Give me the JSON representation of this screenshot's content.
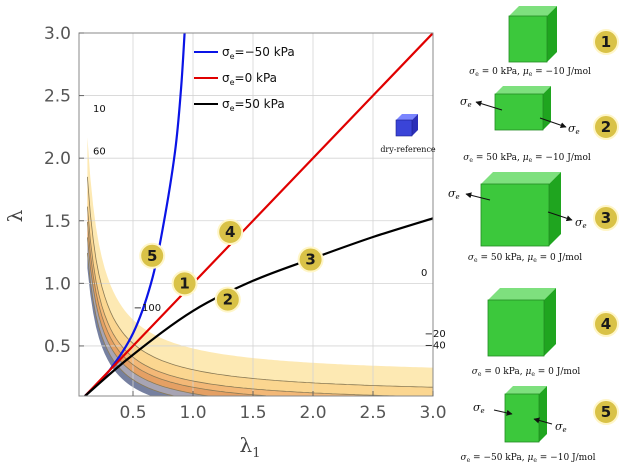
{
  "chart_data": {
    "type": "line",
    "xlabel": "λ",
    "xlabel_sub": "1",
    "ylabel": "λ",
    "xlim": [
      0.05,
      3.0
    ],
    "ylim": [
      0.1,
      3.0
    ],
    "xticks": [
      0.5,
      1.0,
      1.5,
      2.0,
      2.5,
      3.0
    ],
    "xtick_labels": [
      "0.5",
      "1.0",
      "1.5",
      "2.0",
      "2.5",
      "3.0"
    ],
    "yticks": [
      0.5,
      1.0,
      1.5,
      2.0,
      2.5,
      3.0
    ],
    "ytick_labels": [
      "0.5",
      "1.0",
      "1.5",
      "2.0",
      "2.5",
      "3.0"
    ],
    "grid": true,
    "legend_position": "top-right",
    "series": [
      {
        "name": "σe=−50 kPa",
        "color": "#0a14e6",
        "x": [
          0.1,
          0.3,
          0.5,
          0.65,
          0.75,
          0.85,
          0.9,
          0.93
        ],
        "y": [
          0.1,
          0.3,
          0.6,
          1.0,
          1.45,
          2.05,
          2.55,
          3.0
        ]
      },
      {
        "name": "σe=0 kPa",
        "color": "#e00000",
        "x": [
          0.1,
          3.0
        ],
        "y": [
          0.1,
          3.0
        ]
      },
      {
        "name": "σe=50 kPa",
        "color": "#000000",
        "x": [
          0.1,
          0.5,
          1.0,
          1.5,
          2.0,
          2.5,
          3.0
        ],
        "y": [
          0.1,
          0.43,
          0.78,
          1.02,
          1.2,
          1.37,
          1.52
        ]
      }
    ],
    "contour_levels": [
      "10",
      "60",
      "0",
      "−100",
      "−20",
      "−40"
    ],
    "contour_colors": [
      "#fde9b3",
      "#fbd690",
      "#f3b877",
      "#e5a064",
      "#a7a4b4",
      "#7680a0"
    ],
    "dry_reference_label": "dry-reference",
    "points": [
      {
        "id": "1",
        "x": 0.93,
        "y": 1.0
      },
      {
        "id": "2",
        "x": 1.29,
        "y": 0.87
      },
      {
        "id": "3",
        "x": 1.98,
        "y": 1.19
      },
      {
        "id": "4",
        "x": 1.31,
        "y": 1.41
      },
      {
        "id": "5",
        "x": 0.66,
        "y": 1.22
      }
    ]
  },
  "legend": {
    "items": [
      {
        "label": "σ",
        "sub": "e",
        "rest": "=−50 kPa",
        "color": "#0a14e6"
      },
      {
        "label": "σ",
        "sub": "e",
        "rest": "=0 kPa",
        "color": "#e00000"
      },
      {
        "label": "σ",
        "sub": "e",
        "rest": "=50 kPa",
        "color": "#000000"
      }
    ]
  },
  "panels": [
    {
      "id": "1",
      "caption_a": "σ",
      "caption_b": "e",
      "caption_c": " = 0 kPa, ",
      "caption_d": "μ",
      "caption_e": "e",
      "caption_f": " = −10 J/mol"
    },
    {
      "id": "2",
      "caption_a": "σ",
      "caption_b": "e",
      "caption_c": " = 50 kPa, ",
      "caption_d": "μ",
      "caption_e": "e",
      "caption_f": " = −10 J/mol"
    },
    {
      "id": "3",
      "caption_a": "σ",
      "caption_b": "e",
      "caption_c": " = 50 kPa, ",
      "caption_d": "μ",
      "caption_e": "e",
      "caption_f": " = 0 J/mol"
    },
    {
      "id": "4",
      "caption_a": "σ",
      "caption_b": "e",
      "caption_c": " = 0 kPa, ",
      "caption_d": "μ",
      "caption_e": "e",
      "caption_f": " = 0 J/mol"
    },
    {
      "id": "5",
      "caption_a": "σ",
      "caption_b": "e",
      "caption_c": " = −50 kPa, ",
      "caption_d": "μ",
      "caption_e": "e",
      "caption_f": " = −10 J/mol"
    }
  ],
  "arrow_labels": {
    "sigma": "σ",
    "sub": "e"
  }
}
